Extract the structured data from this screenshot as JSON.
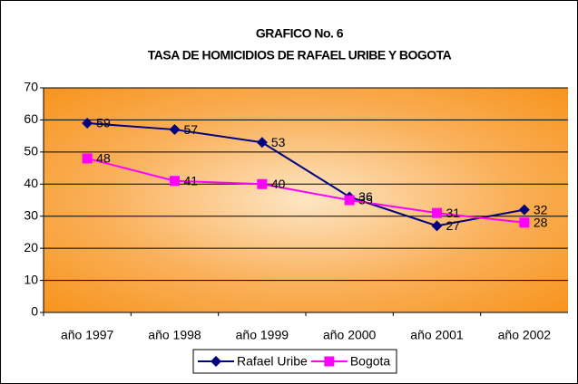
{
  "chart_data": {
    "type": "line",
    "title": "GRAFICO No. 6",
    "subtitle": "TASA DE HOMICIDIOS DE RAFAEL URIBE Y BOGOTA",
    "categories": [
      "año 1997",
      "año 1998",
      "año 1999",
      "año 2000",
      "año 2001",
      "año 2002"
    ],
    "series": [
      {
        "name": "Rafael Uribe",
        "color": "#000080",
        "marker": "diamond",
        "values": [
          59,
          57,
          53,
          36,
          27,
          32
        ]
      },
      {
        "name": "Bogota",
        "color": "#ff00ff",
        "marker": "square",
        "values": [
          48,
          41,
          40,
          35,
          31,
          28
        ]
      }
    ],
    "ylim": [
      0,
      70
    ],
    "yticks": [
      0,
      10,
      20,
      30,
      40,
      50,
      60,
      70
    ],
    "grid": true,
    "legend": "bottom"
  }
}
